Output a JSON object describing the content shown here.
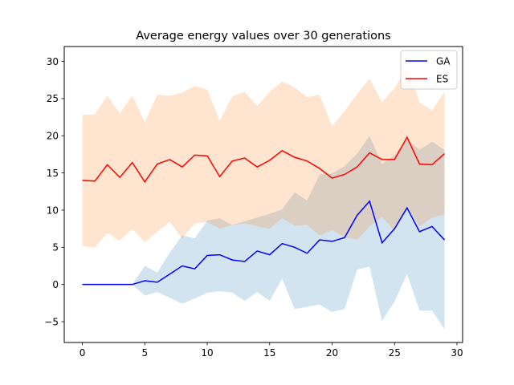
{
  "chart_data": {
    "type": "line",
    "title": "Average energy values over 30 generations",
    "xlabel": "",
    "ylabel": "",
    "xlim": [
      -1.45,
      30.45
    ],
    "ylim": [
      -7.8,
      32.0
    ],
    "xticks": [
      0,
      5,
      10,
      15,
      20,
      25,
      30
    ],
    "yticks": [
      -5,
      0,
      5,
      10,
      15,
      20,
      25,
      30
    ],
    "grid": false,
    "legend_position": "top-right",
    "x": [
      0,
      1,
      2,
      3,
      4,
      5,
      6,
      7,
      8,
      9,
      10,
      11,
      12,
      13,
      14,
      15,
      16,
      17,
      18,
      19,
      20,
      21,
      22,
      23,
      24,
      25,
      26,
      27,
      28,
      29
    ],
    "series": [
      {
        "name": "GA",
        "color": "#0000ff",
        "band_color": "#1f77b4",
        "values": [
          0,
          0,
          0,
          0,
          0,
          0.5,
          0.3,
          1.4,
          2.5,
          2.1,
          3.9,
          4.0,
          3.3,
          3.1,
          4.5,
          4.0,
          5.5,
          5.0,
          4.2,
          6.0,
          5.8,
          6.3,
          9.3,
          11.2,
          5.6,
          7.5,
          10.3,
          7.1,
          7.8,
          6.0
        ],
        "band_upper": [
          0,
          0,
          0,
          0,
          0,
          2.5,
          1.6,
          4.3,
          6.6,
          6.2,
          8.6,
          8.9,
          8.0,
          8.5,
          9.0,
          9.5,
          10.1,
          12.4,
          11.3,
          14.8,
          14.9,
          15.9,
          17.6,
          20.0,
          16.2,
          17.4,
          19.5,
          18.1,
          19.2,
          18.1
        ],
        "band_lower": [
          0,
          0,
          0,
          0,
          0,
          -1.5,
          -1.0,
          -1.8,
          -2.6,
          -1.9,
          -1.1,
          -0.9,
          -1.1,
          -2.2,
          -1.0,
          -2.2,
          0.8,
          -3.3,
          -3.0,
          -2.7,
          -3.7,
          -3.3,
          2.0,
          2.4,
          -4.9,
          -2.3,
          1.4,
          -3.5,
          -3.5,
          -6.0
        ]
      },
      {
        "name": "ES",
        "color": "#ff0000",
        "band_color": "#ff7f0e",
        "values": [
          14.0,
          13.9,
          16.1,
          14.4,
          16.4,
          13.8,
          16.2,
          16.8,
          15.8,
          17.4,
          17.3,
          14.5,
          16.6,
          17.0,
          15.8,
          16.7,
          18.0,
          17.1,
          16.6,
          15.6,
          14.3,
          14.8,
          15.8,
          17.7,
          16.8,
          16.8,
          19.8,
          16.2,
          16.1,
          17.6
        ],
        "band_upper": [
          22.8,
          22.9,
          25.4,
          23.0,
          25.4,
          21.8,
          25.5,
          25.4,
          25.8,
          26.7,
          26.2,
          22.0,
          25.3,
          25.9,
          24.0,
          25.9,
          27.3,
          26.5,
          25.2,
          25.5,
          21.3,
          23.3,
          25.6,
          27.7,
          24.5,
          26.4,
          29.2,
          24.5,
          23.4,
          25.9
        ],
        "band_lower": [
          5.2,
          5.0,
          6.9,
          5.9,
          7.5,
          5.7,
          7.1,
          8.4,
          6.2,
          8.2,
          8.4,
          7.5,
          8.0,
          8.2,
          7.8,
          7.5,
          8.9,
          7.9,
          8.0,
          6.6,
          7.3,
          6.4,
          6.0,
          7.8,
          9.1,
          7.2,
          10.4,
          7.8,
          9.0,
          9.4
        ]
      }
    ]
  }
}
